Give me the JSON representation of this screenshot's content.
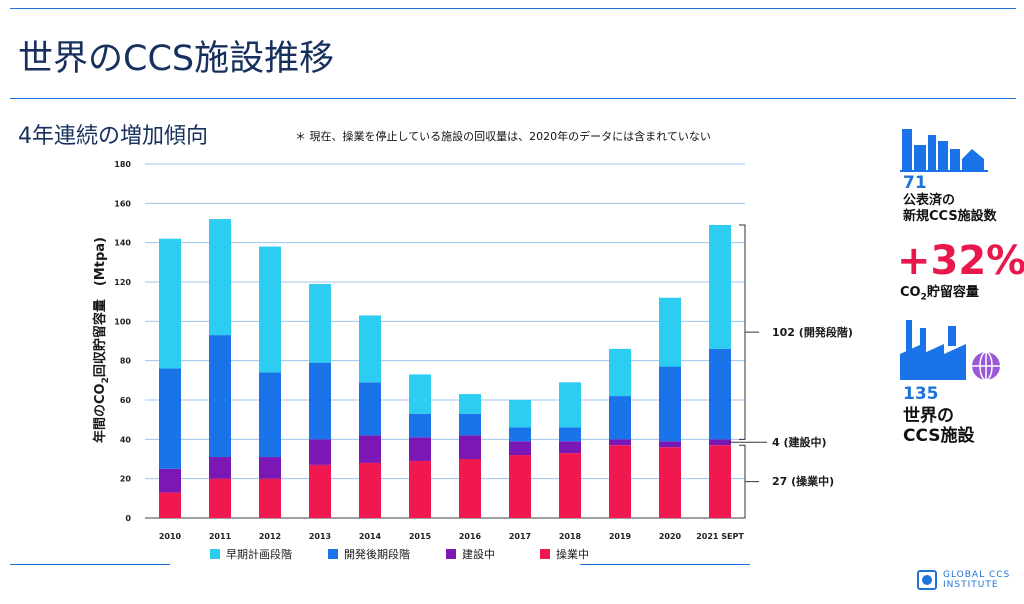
{
  "title": "世界のCCS施設推移",
  "subtitle": "4年連続の増加傾向",
  "note": "＊ 現在、操業を停止している施設の回収量は、2020年のデータには含まれていない",
  "ylabel_pre": "年間のCO",
  "ylabel_sub": "2",
  "ylabel_post": "回収貯留容量　(Mtpa)",
  "legend": [
    {
      "label": "早期計画段階",
      "color": "#2ccdf0"
    },
    {
      "label": "開発後期段階",
      "color": "#1a73e8"
    },
    {
      "label": "建設中",
      "color": "#7b17b5"
    },
    {
      "label": "操業中",
      "color": "#f0184e"
    }
  ],
  "brackets": {
    "development": "102 (開発段階)",
    "construction": "4 (建設中)",
    "operational": "27 (操業中)"
  },
  "sidebar": {
    "stat1_num": "71",
    "stat1_line1": "公表済の",
    "stat1_line2": "新規CCS施設数",
    "stat2_big": "+32%",
    "stat2_pre": "CO",
    "stat2_sub": "2",
    "stat2_post": "貯留容量",
    "stat3_num": "135",
    "stat3_line1": "世界の",
    "stat3_line2": "CCS施設"
  },
  "logo": {
    "line1": "GLOBAL CCS",
    "line2": "INSTITUTE"
  },
  "chart_data": {
    "type": "bar",
    "stacked": true,
    "categories": [
      "2010",
      "2011",
      "2012",
      "2013",
      "2014",
      "2015",
      "2016",
      "2017",
      "2018",
      "2019",
      "2020",
      "2021 SEPT"
    ],
    "ylim": [
      0,
      180
    ],
    "yticks": [
      0,
      20,
      40,
      60,
      80,
      100,
      120,
      140,
      160,
      180
    ],
    "grid": true,
    "legend_position": "bottom",
    "series": [
      {
        "name": "操業中",
        "color": "#f0184e",
        "values": [
          13,
          20,
          20,
          27,
          28,
          29,
          30,
          32,
          33,
          37,
          36,
          37
        ]
      },
      {
        "name": "建設中",
        "color": "#7b17b5",
        "values": [
          12,
          11,
          11,
          13,
          14,
          12,
          12,
          7,
          6,
          3,
          3,
          3
        ]
      },
      {
        "name": "開発後期段階",
        "color": "#1a73e8",
        "values": [
          51,
          62,
          43,
          39,
          27,
          12,
          11,
          7,
          7,
          22,
          38,
          46
        ]
      },
      {
        "name": "早期計画段階",
        "color": "#2ccdf0",
        "values": [
          66,
          59,
          64,
          40,
          34,
          20,
          10,
          14,
          23,
          24,
          35,
          63
        ]
      }
    ]
  }
}
